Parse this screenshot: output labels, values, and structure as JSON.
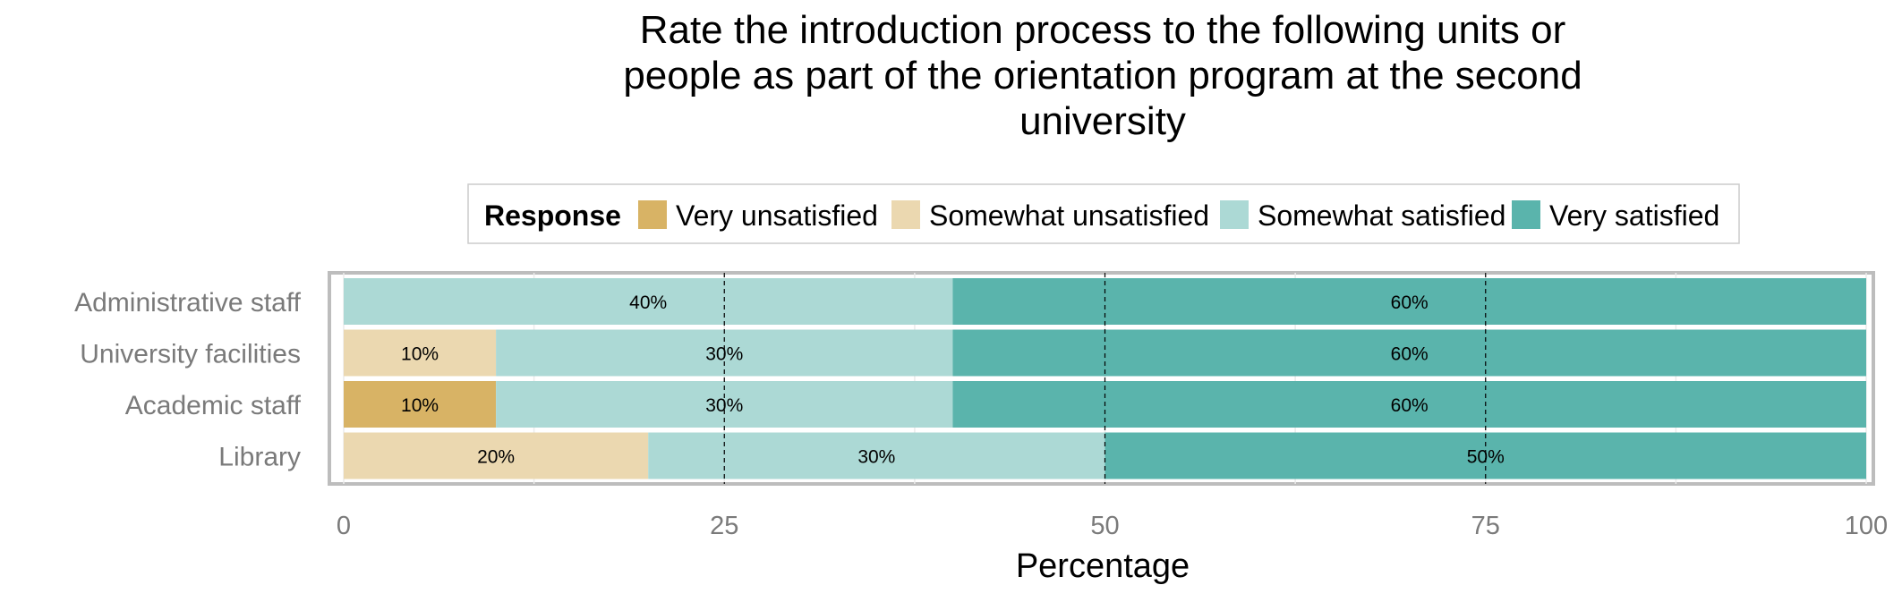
{
  "chart_data": {
    "type": "bar",
    "orientation": "horizontal",
    "stacked": true,
    "title_lines": [
      "Rate the introduction process to the following units or",
      "people as part of the orientation program at the second",
      "university"
    ],
    "legend": {
      "title": "Response",
      "placement": "top"
    },
    "xlabel": "Percentage",
    "ylabel": "",
    "xlim": [
      0,
      100
    ],
    "xticks": [
      0,
      25,
      50,
      75,
      100
    ],
    "grid": true,
    "categories": [
      "Administrative staff",
      "University facilities",
      "Academic staff",
      "Library"
    ],
    "series": [
      {
        "name": "Very unsatisfied",
        "color": "#d8b365",
        "values": [
          0,
          0,
          10,
          0
        ]
      },
      {
        "name": "Somewhat unsatisfied",
        "color": "#ebd8b0",
        "values": [
          0,
          10,
          0,
          20
        ]
      },
      {
        "name": "Somewhat satisfied",
        "color": "#acd9d5",
        "values": [
          40,
          30,
          30,
          30
        ]
      },
      {
        "name": "Very satisfied",
        "color": "#5ab4ac",
        "values": [
          60,
          60,
          60,
          50
        ]
      }
    ]
  }
}
